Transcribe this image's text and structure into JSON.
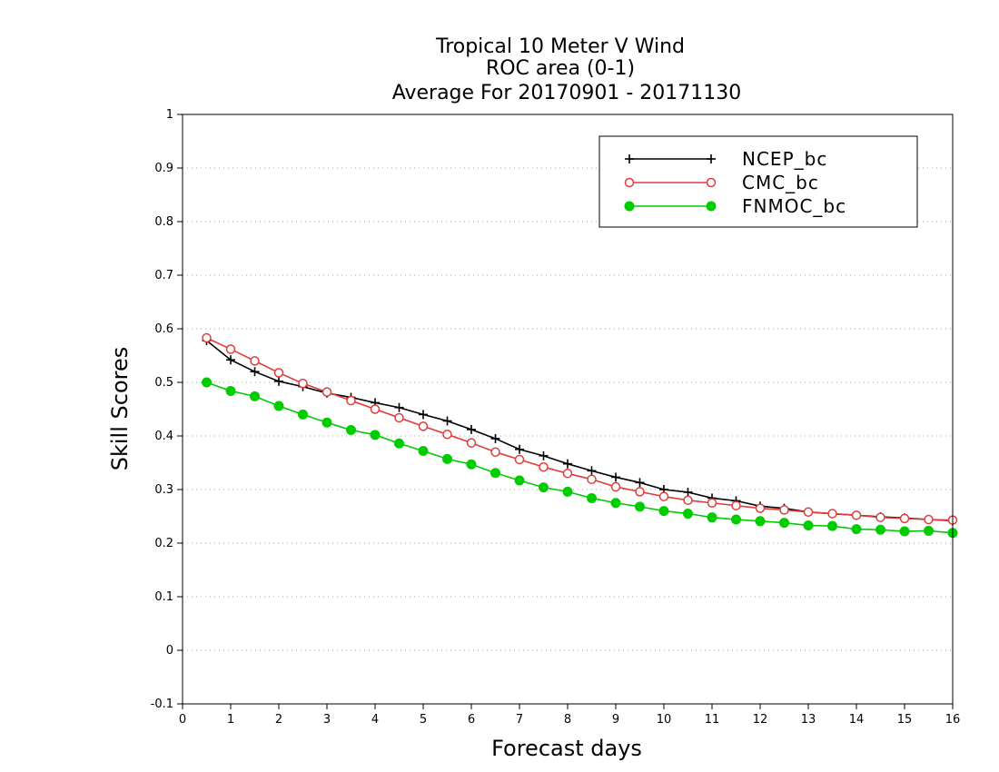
{
  "chart_data": {
    "type": "line",
    "title": "Tropical 10 Meter V Wind",
    "subtitle": "ROC area (0-1)",
    "subtitle2": "Average For 20170901 - 20171130",
    "xlabel": "Forecast days",
    "ylabel": "Skill Scores",
    "xlim": [
      0,
      16
    ],
    "ylim": [
      -0.1,
      1
    ],
    "x_ticks": [
      0,
      1,
      2,
      3,
      4,
      5,
      6,
      7,
      8,
      9,
      10,
      11,
      12,
      13,
      14,
      15,
      16
    ],
    "x_tick_labels": [
      "0",
      "1",
      "2",
      "3",
      "4",
      "5",
      "6",
      "7",
      "8",
      "9",
      "10",
      "11",
      "12",
      "13",
      "14",
      "15",
      "16"
    ],
    "y_ticks": [
      -0.1,
      0,
      0.1,
      0.2,
      0.3,
      0.4,
      0.5,
      0.6,
      0.7,
      0.8,
      0.9,
      1
    ],
    "y_tick_labels": [
      "-0.1",
      "0",
      "0.1",
      "0.2",
      "0.3",
      "0.4",
      "0.5",
      "0.6",
      "0.7",
      "0.8",
      "0.9",
      "1"
    ],
    "grid": "horizontal dotted",
    "legend_position": "top-right",
    "x": [
      0.5,
      1,
      1.5,
      2,
      2.5,
      3,
      3.5,
      4,
      4.5,
      5,
      5.5,
      6,
      6.5,
      7,
      7.5,
      8,
      8.5,
      9,
      9.5,
      10,
      10.5,
      11,
      11.5,
      12,
      12.5,
      13,
      13.5,
      14,
      14.5,
      15,
      15.5,
      16
    ],
    "series": [
      {
        "name": "NCEP_bc",
        "color": "#000000",
        "marker": "plus",
        "values": [
          0.578,
          0.542,
          0.52,
          0.502,
          0.492,
          0.48,
          0.472,
          0.462,
          0.453,
          0.44,
          0.428,
          0.412,
          0.395,
          0.375,
          0.363,
          0.348,
          0.335,
          0.323,
          0.313,
          0.3,
          0.295,
          0.284,
          0.279,
          0.269,
          0.265,
          0.258,
          0.255,
          0.252,
          0.249,
          0.247,
          0.244,
          0.242
        ]
      },
      {
        "name": "CMC_bc",
        "color": "#e03c3c",
        "marker": "open-circle",
        "values": [
          0.583,
          0.562,
          0.54,
          0.518,
          0.498,
          0.482,
          0.466,
          0.45,
          0.434,
          0.418,
          0.403,
          0.387,
          0.37,
          0.356,
          0.342,
          0.33,
          0.319,
          0.305,
          0.296,
          0.287,
          0.28,
          0.275,
          0.27,
          0.265,
          0.262,
          0.258,
          0.255,
          0.252,
          0.248,
          0.246,
          0.244,
          0.243
        ]
      },
      {
        "name": "FNMOC_bc",
        "color": "#00cc00",
        "marker": "filled-circle",
        "values": [
          0.5,
          0.484,
          0.474,
          0.456,
          0.44,
          0.425,
          0.411,
          0.402,
          0.386,
          0.372,
          0.357,
          0.347,
          0.331,
          0.317,
          0.304,
          0.296,
          0.284,
          0.275,
          0.268,
          0.26,
          0.255,
          0.248,
          0.244,
          0.241,
          0.238,
          0.233,
          0.232,
          0.226,
          0.225,
          0.222,
          0.223,
          0.219
        ]
      }
    ]
  }
}
